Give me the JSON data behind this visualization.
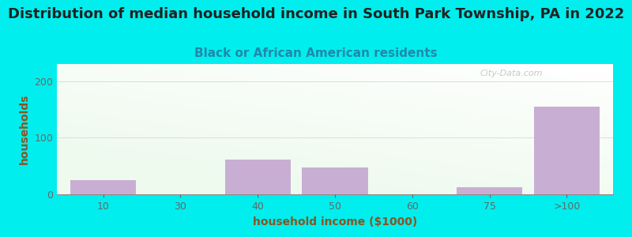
{
  "title": "Distribution of median household income in South Park Township, PA in 2022",
  "subtitle": "Black or African American residents",
  "xlabel": "household income ($1000)",
  "ylabel": "households",
  "background_color": "#00EEEE",
  "bar_color": "#c9aed4",
  "bar_edgecolor": "#b89fc4",
  "categories": [
    "10",
    "30",
    "40",
    "50",
    "60",
    "75",
    ">100"
  ],
  "values": [
    25,
    0,
    62,
    47,
    0,
    12,
    155
  ],
  "ylim": [
    0,
    230
  ],
  "yticks": [
    0,
    100,
    200
  ],
  "title_fontsize": 13,
  "subtitle_fontsize": 11,
  "axis_label_fontsize": 10,
  "tick_fontsize": 9,
  "title_color": "#222222",
  "subtitle_color": "#2288aa",
  "axis_label_color": "#885522",
  "tick_color": "#666666",
  "watermark_text": "City-Data.com",
  "watermark_color": "#bbbbbb",
  "grid_color": "#dddddd",
  "plot_bg_gradient_top": "#f5fffa",
  "plot_bg_gradient_bottom": "#d8f0d8"
}
